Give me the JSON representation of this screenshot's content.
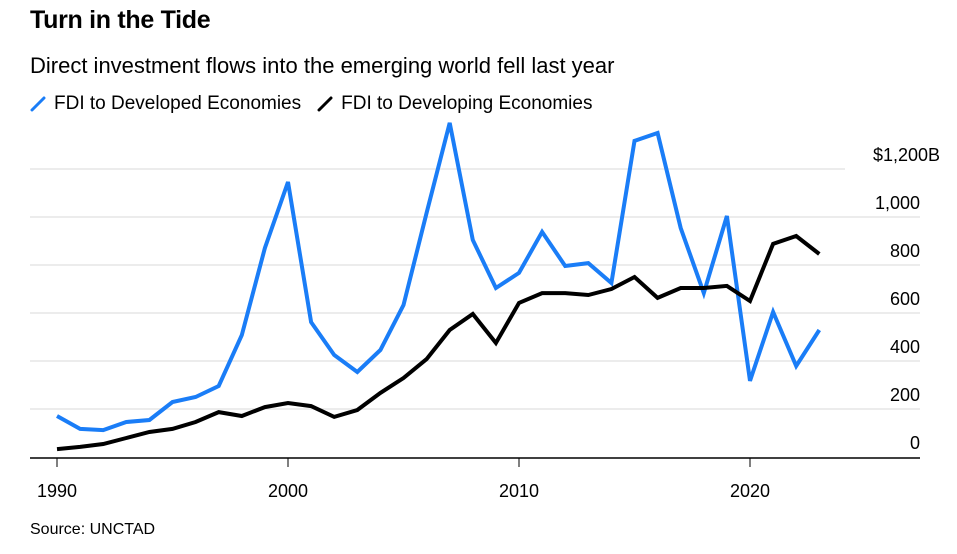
{
  "title": "Turn in the Tide",
  "subtitle": "Direct investment flows into the emerging world fell last year",
  "source": "Source: UNCTAD",
  "legend": [
    {
      "label": "FDI to Developed Economies",
      "color": "#1a7df7",
      "icon": "diagonal-line-icon"
    },
    {
      "label": "FDI to Developing Economies",
      "color": "#000000",
      "icon": "diagonal-line-icon"
    }
  ],
  "chart_data": {
    "type": "line",
    "title": "Turn in the Tide",
    "subtitle": "Direct investment flows into the emerging world fell last year",
    "xlabel": "",
    "ylabel": "",
    "x": [
      1990,
      1991,
      1992,
      1993,
      1994,
      1995,
      1996,
      1997,
      1998,
      1999,
      2000,
      2001,
      2002,
      2003,
      2004,
      2005,
      2006,
      2007,
      2008,
      2009,
      2010,
      2011,
      2012,
      2013,
      2014,
      2015,
      2016,
      2017,
      2018,
      2019,
      2020,
      2021,
      2022,
      2023
    ],
    "series": [
      {
        "name": "FDI to Developed Economies",
        "color": "#1a7df7",
        "values": [
          171,
          117,
          112,
          146,
          154,
          229,
          250,
          296,
          508,
          871,
          1146,
          562,
          425,
          354,
          446,
          633,
          1017,
          1392,
          904,
          704,
          767,
          938,
          796,
          808,
          725,
          1317,
          1350,
          954,
          683,
          1004,
          317,
          604,
          379,
          529
        ]
      },
      {
        "name": "FDI to Developing Economies",
        "color": "#000000",
        "values": [
          33,
          42,
          54,
          79,
          104,
          117,
          146,
          187,
          171,
          208,
          225,
          212,
          167,
          196,
          267,
          329,
          408,
          529,
          596,
          475,
          642,
          683,
          683,
          675,
          700,
          750,
          663,
          704,
          704,
          713,
          650,
          888,
          921,
          846
        ]
      }
    ],
    "xlim": [
      1989.5,
      2026.3
    ],
    "ylim": [
      0,
      1200
    ],
    "x_ticks": [
      1990,
      2000,
      2010,
      2020
    ],
    "x_tick_labels": [
      "1990",
      "2000",
      "2010",
      "2020"
    ],
    "y_ticks": [
      0,
      200,
      400,
      600,
      800,
      1000,
      1200
    ],
    "y_tick_labels": [
      "0",
      "200",
      "400",
      "600",
      "800",
      "1,000",
      "$1,200B"
    ],
    "grid": true,
    "y_axis_side": "right",
    "legend_position": "top-left"
  }
}
